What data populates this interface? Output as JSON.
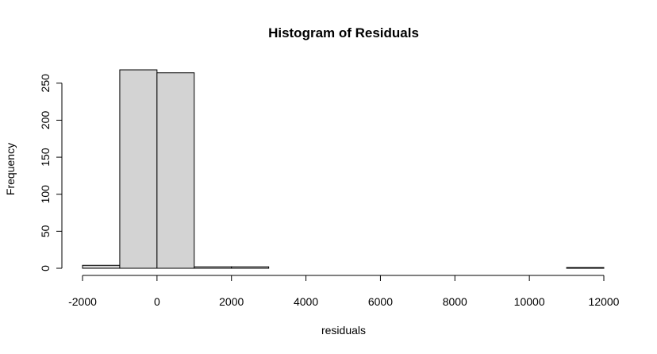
{
  "chart_data": {
    "type": "bar",
    "title": "Histogram of Residuals",
    "xlabel": "residuals",
    "ylabel": "Frequency",
    "bins": [
      {
        "x0": -2000,
        "x1": -1000,
        "count": 4
      },
      {
        "x0": -1000,
        "x1": 0,
        "count": 268
      },
      {
        "x0": 0,
        "x1": 1000,
        "count": 264
      },
      {
        "x0": 1000,
        "x1": 2000,
        "count": 2
      },
      {
        "x0": 2000,
        "x1": 3000,
        "count": 2
      },
      {
        "x0": 3000,
        "x1": 4000,
        "count": 0
      },
      {
        "x0": 4000,
        "x1": 5000,
        "count": 0
      },
      {
        "x0": 5000,
        "x1": 6000,
        "count": 0
      },
      {
        "x0": 6000,
        "x1": 7000,
        "count": 0
      },
      {
        "x0": 7000,
        "x1": 8000,
        "count": 0
      },
      {
        "x0": 8000,
        "x1": 9000,
        "count": 0
      },
      {
        "x0": 9000,
        "x1": 10000,
        "count": 0
      },
      {
        "x0": 10000,
        "x1": 11000,
        "count": 0
      },
      {
        "x0": 11000,
        "x1": 12000,
        "count": 1
      }
    ],
    "xlim": [
      -2000,
      12000
    ],
    "ylim": [
      0,
      268
    ],
    "xticks": [
      -2000,
      0,
      2000,
      4000,
      6000,
      8000,
      10000,
      12000
    ],
    "xtick_labels": [
      "-2000",
      "0",
      "2000",
      "4000",
      "6000",
      "8000",
      "10000",
      "12000"
    ],
    "yticks": [
      0,
      50,
      100,
      150,
      200,
      250
    ],
    "ytick_labels": [
      "0",
      "50",
      "100",
      "150",
      "200",
      "250"
    ],
    "bar_color": "#d3d3d3",
    "grid": false,
    "legend": "none"
  }
}
